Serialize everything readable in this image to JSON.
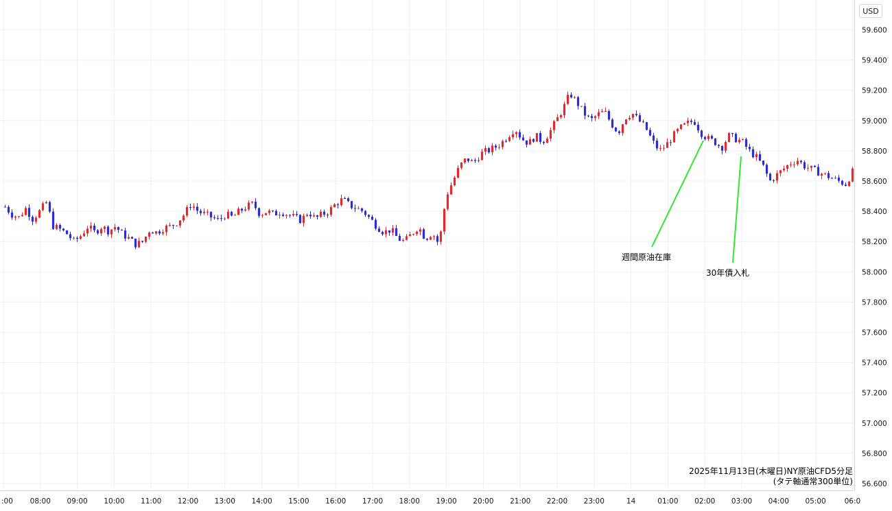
{
  "chart_data": {
    "type": "candlestick",
    "currency": "USD",
    "caption_line1": "2025年11月13日(木曜日)NY原油CFD5分足",
    "caption_line2": "(タテ軸通常300単位)",
    "ylim": [
      56.6,
      59.65
    ],
    "y_ticks": [
      "59.600",
      "59.400",
      "59.200",
      "59.000",
      "58.800",
      "58.600",
      "58.400",
      "58.200",
      "58.000",
      "57.800",
      "57.600",
      "57.400",
      "57.200",
      "57.000",
      "56.800",
      "56.600"
    ],
    "x_ticks": [
      ":00",
      "08:00",
      "09:00",
      "10:00",
      "11:00",
      "12:00",
      "13:00",
      "14:00",
      "15:00",
      "16:00",
      "17:00",
      "18:00",
      "19:00",
      "20:00",
      "21:00",
      "22:00",
      "23:00",
      "14",
      "01:00",
      "02:00",
      "03:00",
      "04:00",
      "05:00",
      "06:0"
    ],
    "grid": true,
    "up_color": "#e5282e",
    "down_color": "#2b2bd9",
    "annotations": [
      {
        "label": "週間原油在庫",
        "time": "02:00"
      },
      {
        "label": "30年債入札",
        "time": "03:00"
      }
    ],
    "price_path": [
      58.43,
      58.38,
      58.36,
      58.42,
      58.35,
      58.4,
      58.46,
      58.3,
      58.28,
      58.25,
      58.2,
      58.24,
      58.3,
      58.26,
      58.3,
      58.27,
      58.3,
      58.25,
      58.22,
      58.18,
      58.2,
      58.28,
      58.26,
      58.29,
      58.3,
      58.33,
      58.38,
      58.45,
      58.4,
      58.38,
      58.36,
      58.34,
      58.38,
      58.36,
      58.4,
      58.43,
      58.45,
      58.38,
      58.4,
      58.38,
      58.4,
      58.38,
      58.36,
      58.34,
      58.4,
      58.35,
      58.38,
      58.4,
      58.45,
      58.48,
      58.44,
      58.42,
      58.4,
      58.35,
      58.3,
      58.26,
      58.28,
      58.22,
      58.2,
      58.25,
      58.3,
      58.22,
      58.26,
      58.18,
      58.5,
      58.6,
      58.7,
      58.75,
      58.72,
      58.78,
      58.8,
      58.82,
      58.85,
      58.9,
      58.95,
      58.88,
      58.85,
      58.9,
      58.86,
      58.92,
      59.0,
      59.08,
      59.18,
      59.12,
      59.05,
      59.0,
      59.04,
      59.06,
      58.98,
      58.92,
      59.02,
      59.05,
      59.0,
      58.95,
      58.86,
      58.8,
      58.84,
      58.9,
      58.95,
      58.98,
      59.0,
      58.92,
      58.88,
      58.86,
      58.82,
      58.9,
      58.88,
      58.86,
      58.8,
      58.76,
      58.7,
      58.6,
      58.64,
      58.68,
      58.72,
      58.74,
      58.7,
      58.68,
      58.66,
      58.64,
      58.62,
      58.6,
      58.58,
      58.66
    ]
  }
}
